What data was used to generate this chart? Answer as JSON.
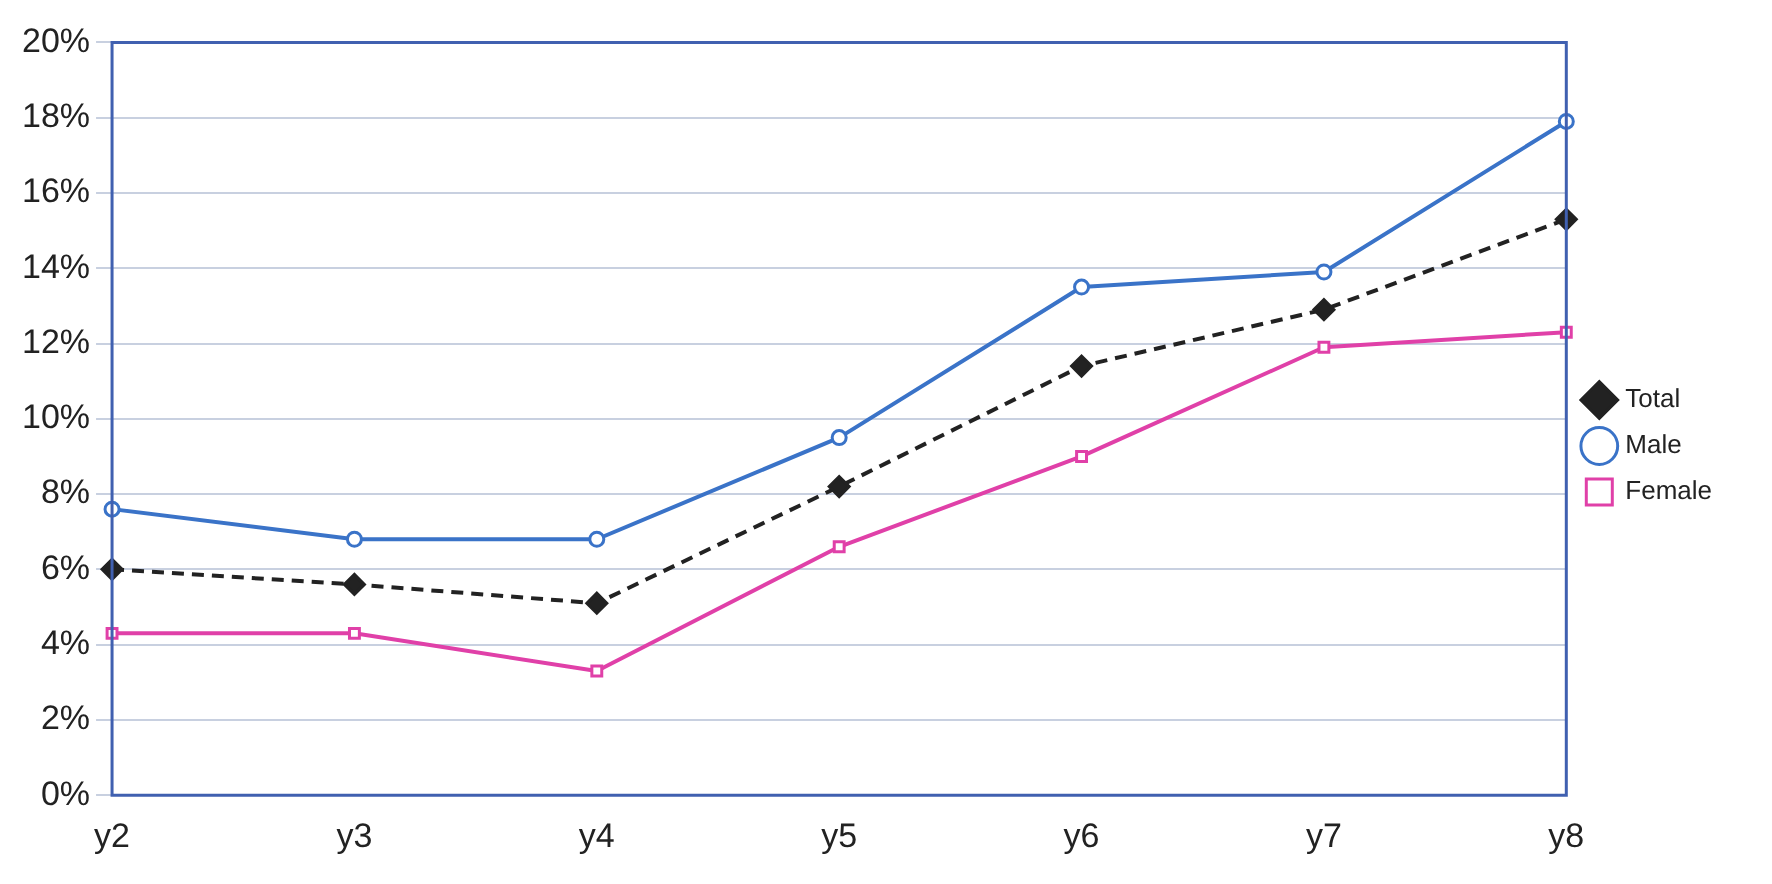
{
  "chart_data": {
    "type": "line",
    "categories": [
      "y2",
      "y3",
      "y4",
      "y5",
      "y6",
      "y7",
      "y8"
    ],
    "series": [
      {
        "name": "Total",
        "color": "#222222",
        "marker": "diamond",
        "line_style": "dashed",
        "values": [
          6.0,
          5.6,
          5.1,
          8.2,
          11.4,
          12.9,
          15.3
        ]
      },
      {
        "name": "Male",
        "color": "#3a73c8",
        "marker": "circle",
        "line_style": "solid",
        "values": [
          7.6,
          6.8,
          6.8,
          9.5,
          13.5,
          13.9,
          17.9
        ]
      },
      {
        "name": "Female",
        "color": "#e040a8",
        "marker": "square",
        "line_style": "solid",
        "values": [
          4.3,
          4.3,
          3.3,
          6.6,
          9.0,
          11.9,
          12.3
        ]
      }
    ],
    "ylim": [
      0,
      20
    ],
    "yticks": [
      {
        "value": 0,
        "label": "0%"
      },
      {
        "value": 2,
        "label": "2%"
      },
      {
        "value": 4,
        "label": "4%"
      },
      {
        "value": 6,
        "label": "6%"
      },
      {
        "value": 8,
        "label": "8%"
      },
      {
        "value": 10,
        "label": "10%"
      },
      {
        "value": 12,
        "label": "12%"
      },
      {
        "value": 14,
        "label": "14%"
      },
      {
        "value": 16,
        "label": "16%"
      },
      {
        "value": 18,
        "label": "18%"
      },
      {
        "value": 20,
        "label": "20%"
      }
    ],
    "grid": "y",
    "legend": "right"
  }
}
